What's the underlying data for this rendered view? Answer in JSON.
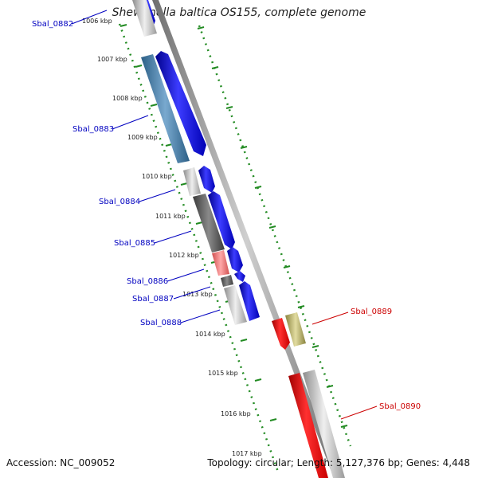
{
  "title": "Shewanella baltica OS155, complete genome",
  "accession": "Accession: NC_009052",
  "summary": "Topology: circular; Length: 5,127,376 bp; Genes: 4,448",
  "colors": {
    "forward_strand": "#0000ff",
    "reverse_strand": "#ff0000",
    "left_gene_labels": "#0000c0",
    "right_gene_labels": "#cc0000",
    "ticks": "#228b22",
    "backbone": "#8c8c8c"
  },
  "ruler": {
    "ticks": [
      {
        "label": "1006 kbp"
      },
      {
        "label": "1007 kbp"
      },
      {
        "label": "1008 kbp"
      },
      {
        "label": "1009 kbp"
      },
      {
        "label": "1010 kbp"
      },
      {
        "label": "1011 kbp"
      },
      {
        "label": "1012 kbp"
      },
      {
        "label": "1013 kbp"
      },
      {
        "label": "1014 kbp"
      },
      {
        "label": "1015 kbp"
      },
      {
        "label": "1016 kbp"
      },
      {
        "label": "1017 kbp"
      }
    ]
  },
  "genes": {
    "left": [
      {
        "label": "Sbal_0882"
      },
      {
        "label": "Sbal_0883"
      },
      {
        "label": "Sbal_0884"
      },
      {
        "label": "Sbal_0885"
      },
      {
        "label": "Sbal_0886"
      },
      {
        "label": "Sbal_0887"
      },
      {
        "label": "Sbal_0888"
      }
    ],
    "right": [
      {
        "label": "Sbal_0889"
      },
      {
        "label": "Sbal_0890"
      }
    ]
  }
}
